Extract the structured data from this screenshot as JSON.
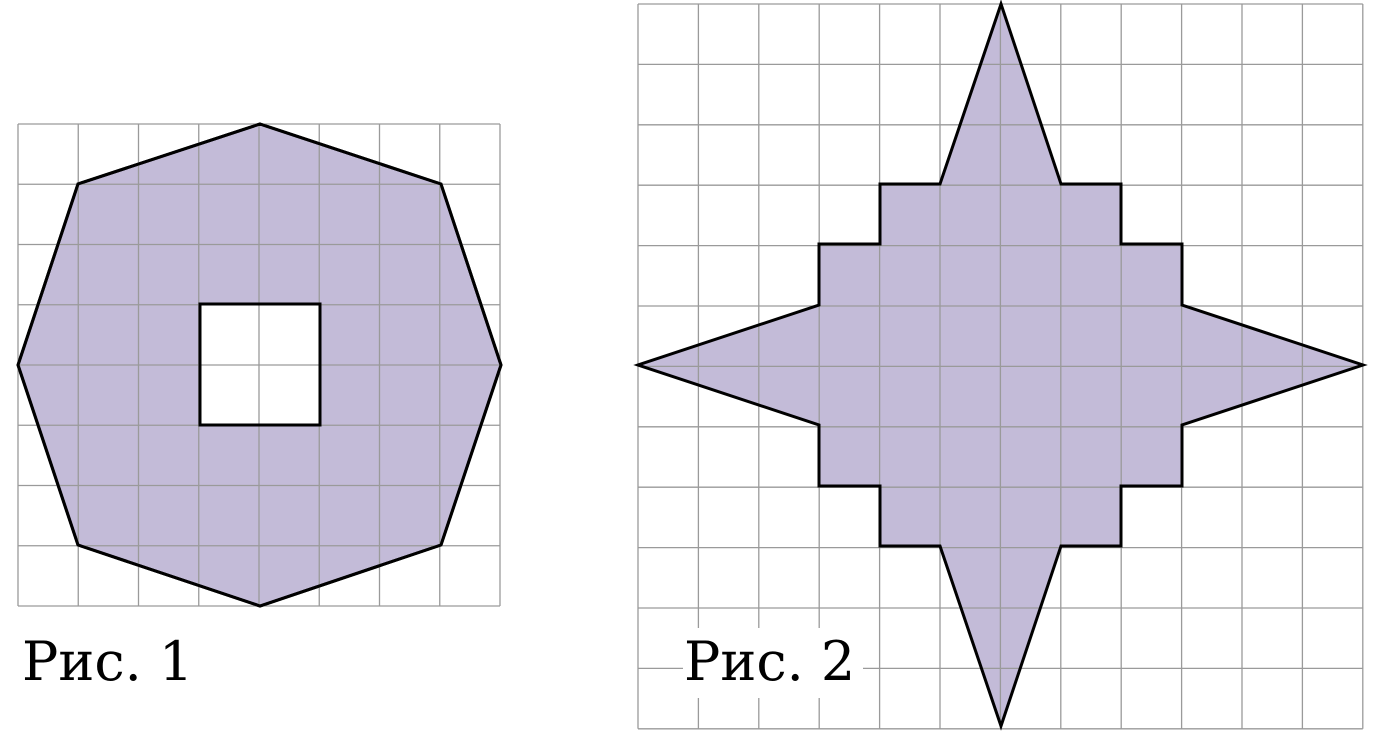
{
  "figures": [
    {
      "caption": "Рис. 1"
    },
    {
      "caption": "Рис. 2"
    }
  ],
  "colors": {
    "fill": "#c3bbd8",
    "grid": "#9a9a9a",
    "outline": "#000000",
    "hole": "#ffffff"
  }
}
